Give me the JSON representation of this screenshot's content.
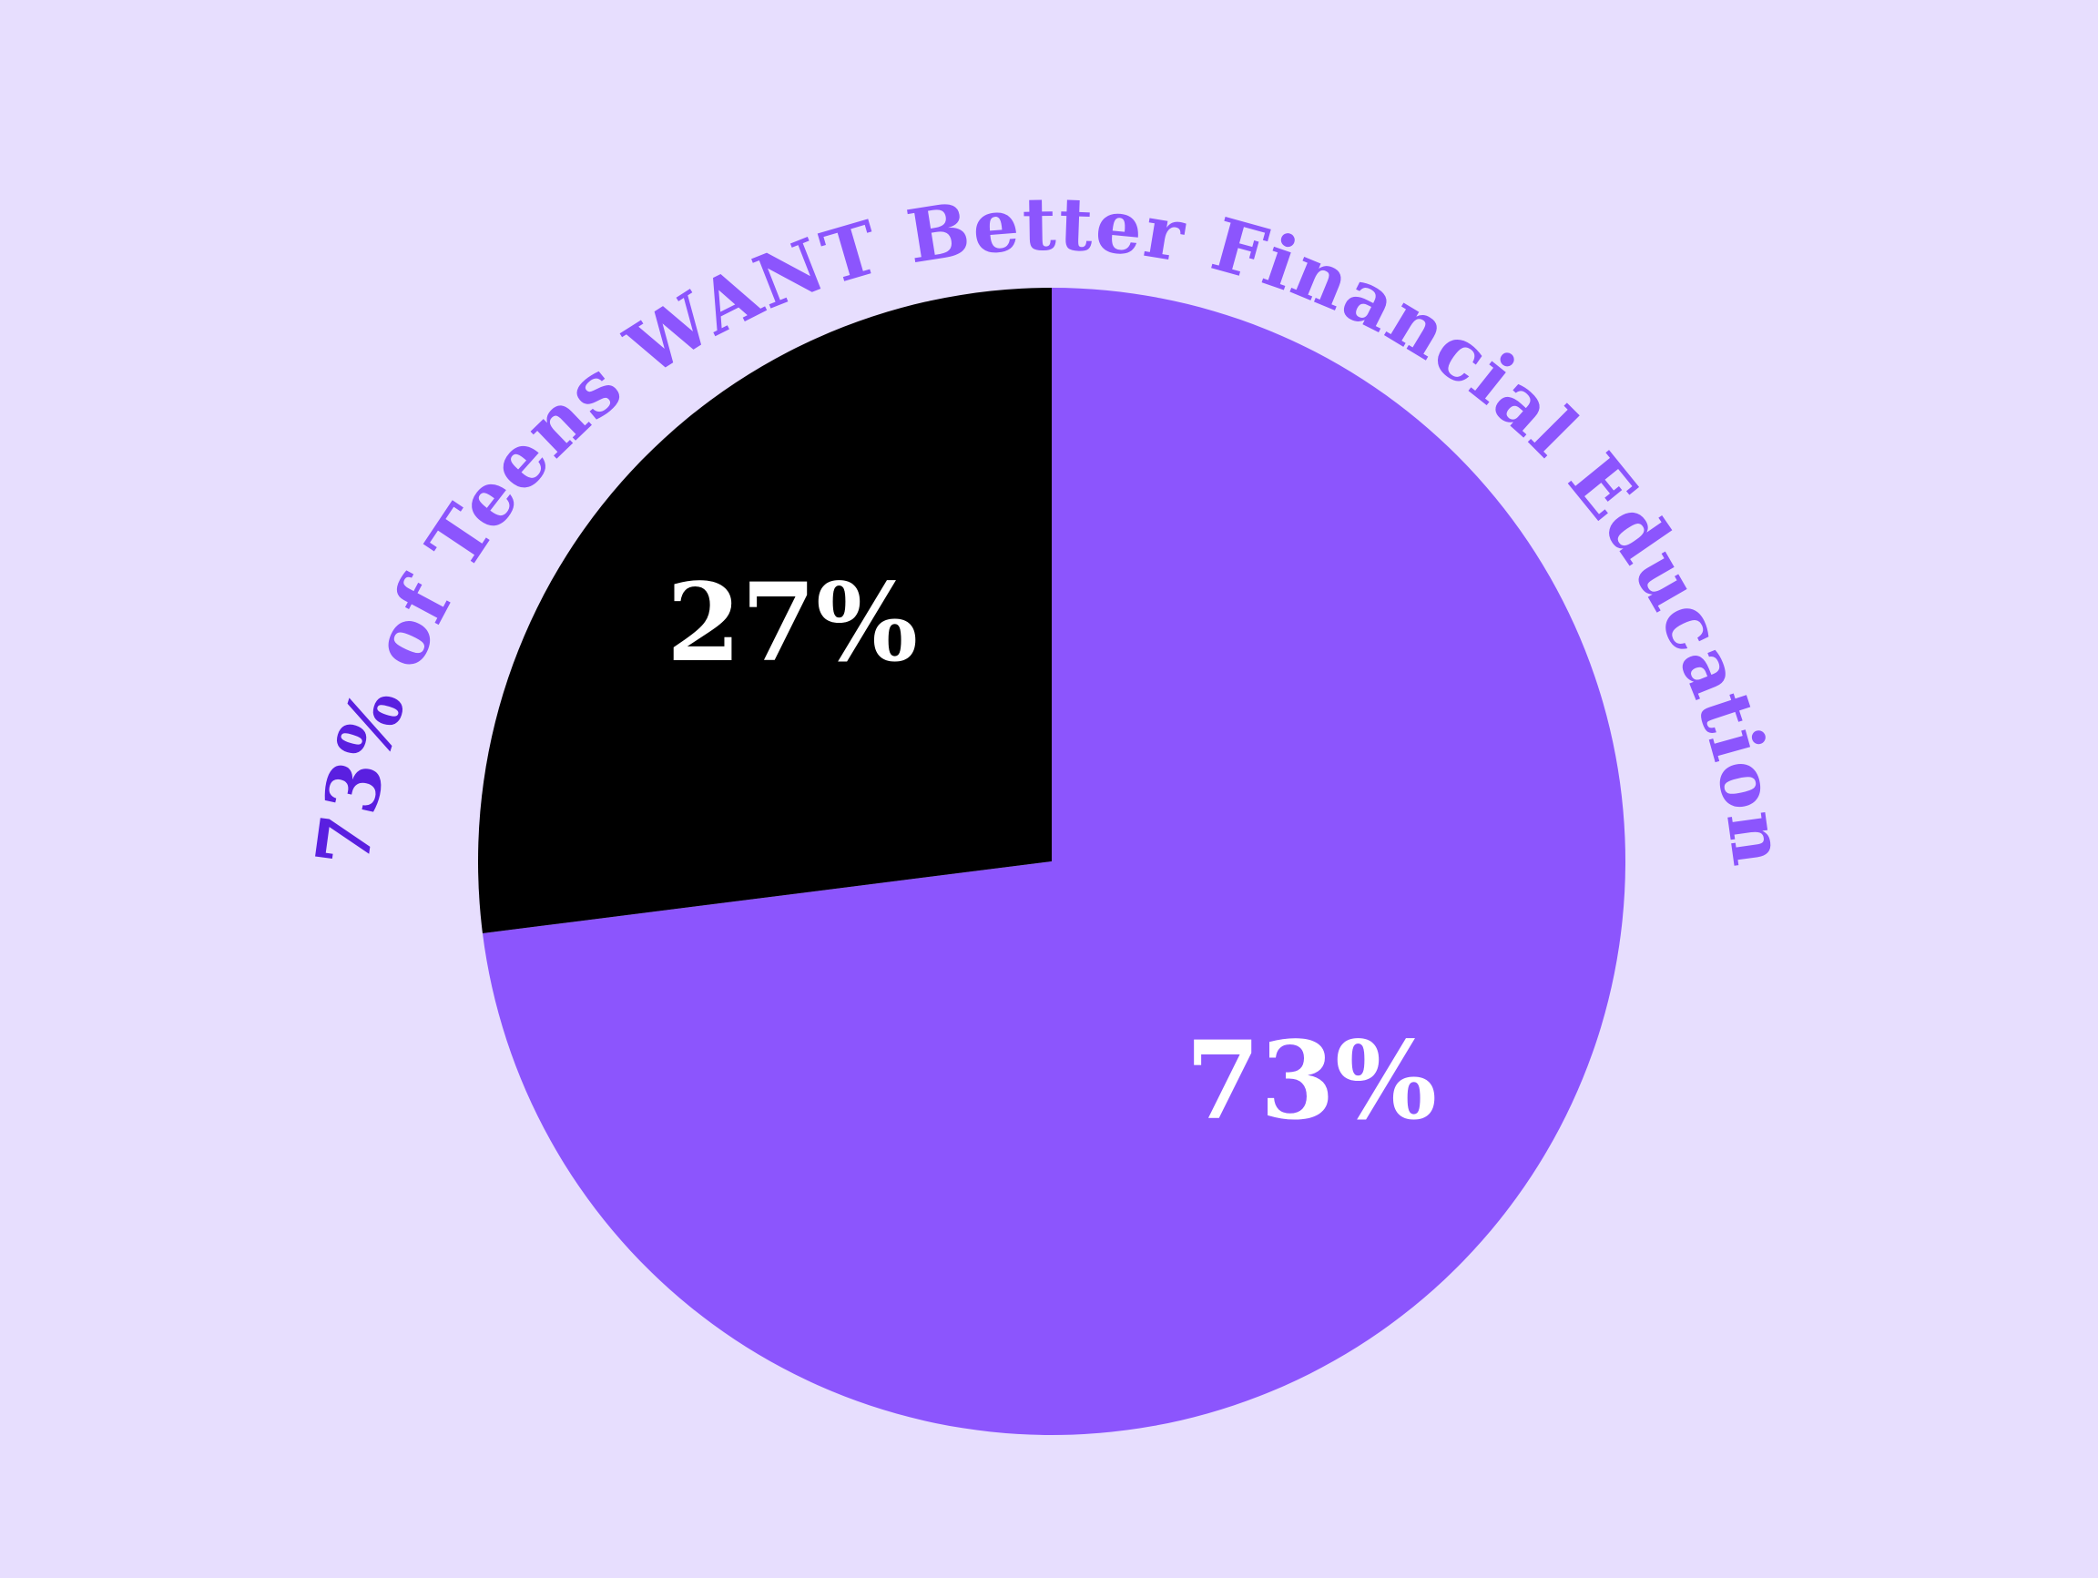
{
  "title": {
    "highlight": "73%",
    "rest": " of Teens WANT Better Financial Education"
  },
  "colors": {
    "background": "#e7defe",
    "title_highlight": "#5a1fe0",
    "title_rest": "#8c55fd",
    "label_text": "#ffffff"
  },
  "chart_data": {
    "type": "pie",
    "title": "73% of Teens WANT Better Financial Education",
    "slices": [
      {
        "label": "73%",
        "value": 73,
        "color": "#8c55fd"
      },
      {
        "label": "27%",
        "value": 27,
        "color": "#000000"
      }
    ],
    "start_angle": "12 o'clock",
    "direction": "clockwise",
    "legend": "none"
  }
}
